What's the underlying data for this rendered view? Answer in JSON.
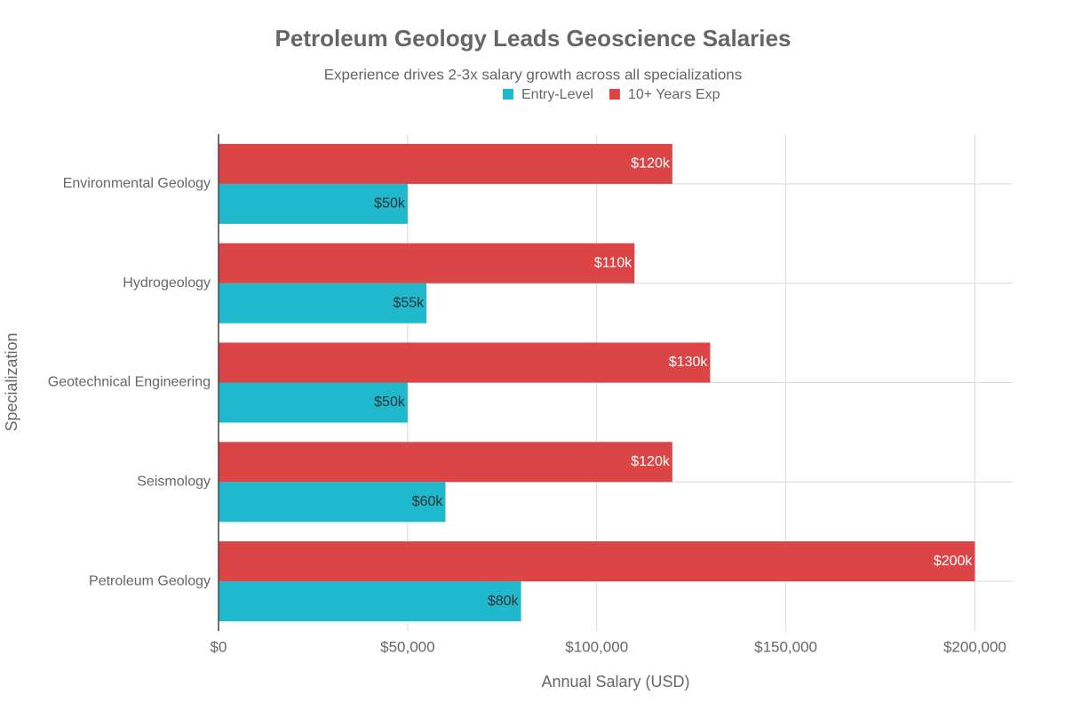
{
  "chart_data": {
    "type": "hbar",
    "title": "Petroleum Geology Leads Geoscience Salaries",
    "subtitle": "Experience drives 2-3x salary growth across all specializations",
    "x_label": "Annual Salary (USD)",
    "y_label": "Specialization",
    "categories": [
      "Petroleum Geology",
      "Seismology",
      "Geotechnical Engineering",
      "Hydrogeology",
      "Environmental Geology"
    ],
    "series": [
      {
        "name": "Entry-Level",
        "color": "#1fb8cd",
        "values": [
          80000,
          60000,
          50000,
          55000,
          50000
        ],
        "value_labels": [
          "$80k",
          "$60k",
          "$50k",
          "$55k",
          "$50k"
        ],
        "label_color": "#333333"
      },
      {
        "name": "10+ Years Exp",
        "color": "#db4545",
        "values": [
          200000,
          120000,
          130000,
          110000,
          120000
        ],
        "value_labels": [
          "$200k",
          "$120k",
          "$130k",
          "$110k",
          "$120k"
        ],
        "label_color": "#ffffff"
      }
    ],
    "xlim": [
      0,
      210000
    ],
    "xticks": [
      {
        "value": 0,
        "label": "$0"
      },
      {
        "value": 50000,
        "label": "$50,000"
      },
      {
        "value": 100000,
        "label": "$100,000"
      },
      {
        "value": 150000,
        "label": "$150,000"
      },
      {
        "value": 200000,
        "label": "$200,000"
      }
    ],
    "grid": true
  }
}
